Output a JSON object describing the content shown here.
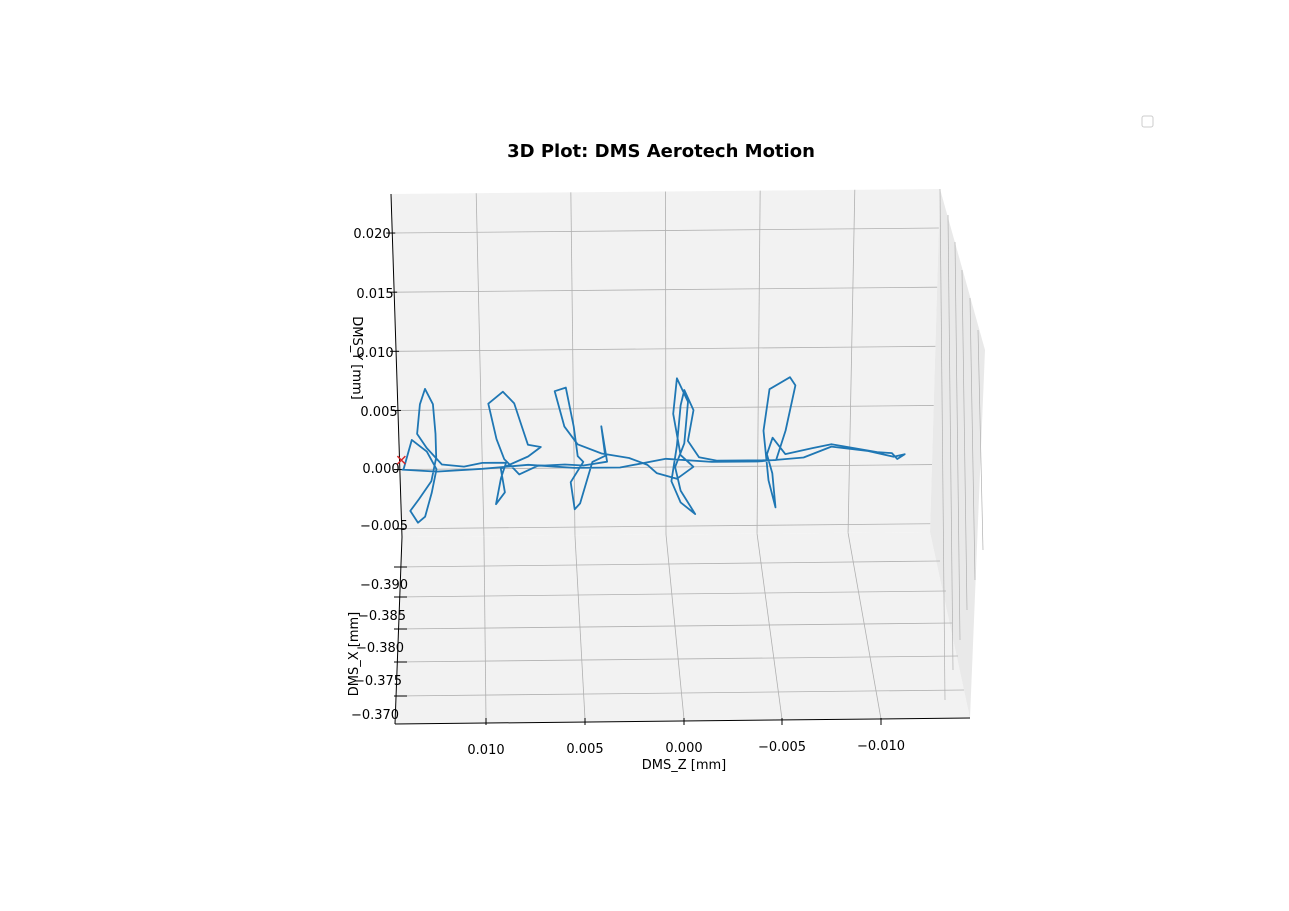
{
  "chart_data": {
    "type": "line",
    "projection": "3d",
    "title": "3D Plot: DMS Aerotech Motion",
    "xlabel": "DMS_Z [mm]",
    "ylabel": "DMS_Y [mm]",
    "zlabel": "DMS_X [mm]",
    "x_ticks": [
      "0.010",
      "0.005",
      "0.000",
      "−0.005",
      "−0.010"
    ],
    "y_ticks": [
      "0.020",
      "0.015",
      "0.010",
      "0.005",
      "0.000",
      "−0.005"
    ],
    "z_ticks": [
      "−0.390",
      "−0.385",
      "−0.380",
      "−0.375",
      "−0.370"
    ],
    "x_range": [
      0.0145,
      -0.0145
    ],
    "y_range": [
      -0.0057,
      0.0233
    ],
    "grid": true,
    "legend": {
      "visible": true,
      "entries": [],
      "placement": "top-right"
    },
    "colors": {
      "series": "#1f77b4",
      "start_marker": "#d62728",
      "pane": "#f2f2f2",
      "grid": "#b0b0b0"
    },
    "start_marker": {
      "symbol": "x",
      "z": 0.0144,
      "y": 0.0008
    },
    "series": [
      {
        "points": [
          [
            0.0144,
            0.0
          ],
          [
            0.0125,
            -0.0002
          ],
          [
            0.01,
            0.0
          ],
          [
            0.0075,
            0.0003
          ],
          [
            0.005,
            0.0
          ],
          [
            0.0025,
            0.0
          ],
          [
            0.0,
            0.0007
          ],
          [
            -0.0025,
            0.0004
          ],
          [
            -0.005,
            0.0004
          ],
          [
            -0.0075,
            0.0007
          ],
          [
            -0.009,
            0.0016
          ],
          [
            -0.011,
            0.0012
          ],
          [
            -0.0124,
            0.0007
          ],
          [
            -0.013,
            0.0009
          ],
          [
            -0.0126,
            0.0005
          ],
          [
            -0.0123,
            0.001
          ],
          [
            -0.0115,
            0.0011
          ],
          [
            -0.009,
            0.0018
          ],
          [
            -0.008,
            0.0015
          ],
          [
            -0.0065,
            0.001
          ],
          [
            -0.0058,
            0.0024
          ],
          [
            -0.0055,
            0.001
          ],
          [
            -0.0058,
            -0.0006
          ],
          [
            -0.006,
            -0.0035
          ],
          [
            -0.0056,
            -0.0012
          ],
          [
            -0.0053,
            0.003
          ],
          [
            -0.0056,
            0.0065
          ],
          [
            -0.0067,
            0.0075
          ],
          [
            -0.007,
            0.0068
          ],
          [
            -0.0065,
            0.003
          ],
          [
            -0.006,
            0.0005
          ],
          [
            -0.0045,
            0.0005
          ],
          [
            -0.0028,
            0.0005
          ],
          [
            -0.0018,
            0.0008
          ],
          [
            -0.0012,
            0.0022
          ],
          [
            -0.0015,
            0.0048
          ],
          [
            -0.001,
            0.0065
          ],
          [
            -0.0008,
            0.0052
          ],
          [
            -0.0006,
            0.0018
          ],
          [
            -0.0003,
            -0.0012
          ],
          [
            -0.0008,
            -0.003
          ],
          [
            -0.0016,
            -0.004
          ],
          [
            -0.0008,
            -0.002
          ],
          [
            -0.0005,
            0.0
          ],
          [
            -0.001,
            0.002
          ],
          [
            -0.0012,
            0.0055
          ],
          [
            -0.0006,
            0.0075
          ],
          [
            -0.0004,
            0.0045
          ],
          [
            -0.0008,
            0.001
          ],
          [
            -0.0015,
            0.0
          ],
          [
            -0.0006,
            -0.001
          ],
          [
            0.0005,
            -0.0005
          ],
          [
            0.001,
            0.0002
          ],
          [
            0.002,
            0.0008
          ],
          [
            0.0035,
            0.0012
          ],
          [
            0.0048,
            0.002
          ],
          [
            0.0055,
            0.0035
          ],
          [
            0.006,
            0.0065
          ],
          [
            0.0054,
            0.0068
          ],
          [
            0.005,
            0.0035
          ],
          [
            0.0048,
            0.001
          ],
          [
            0.0045,
            0.0005
          ],
          [
            0.0052,
            -0.0012
          ],
          [
            0.005,
            -0.0035
          ],
          [
            0.0047,
            -0.003
          ],
          [
            0.0043,
            -0.001
          ],
          [
            0.004,
            0.0005
          ],
          [
            0.0033,
            0.001
          ],
          [
            0.0035,
            0.0035
          ],
          [
            0.0032,
            0.0005
          ],
          [
            0.0045,
            0.0002
          ],
          [
            0.0055,
            0.0003
          ],
          [
            0.007,
            0.0002
          ],
          [
            0.008,
            -0.0005
          ],
          [
            0.0083,
            0.0
          ],
          [
            0.0088,
            0.0008
          ],
          [
            0.0092,
            0.0025
          ],
          [
            0.0096,
            0.0055
          ],
          [
            0.0088,
            0.0065
          ],
          [
            0.0082,
            0.0055
          ],
          [
            0.0078,
            0.0035
          ],
          [
            0.0075,
            0.002
          ],
          [
            0.0068,
            0.0018
          ],
          [
            0.0075,
            0.001
          ],
          [
            0.009,
            0.0
          ],
          [
            0.0088,
            -0.002
          ],
          [
            0.0093,
            -0.003
          ],
          [
            0.009,
            -0.0008
          ],
          [
            0.0087,
            0.0005
          ],
          [
            0.01,
            0.0005
          ],
          [
            0.011,
            0.0002
          ],
          [
            0.0122,
            0.0004
          ],
          [
            0.013,
            0.0018
          ],
          [
            0.0135,
            0.003
          ],
          [
            0.0133,
            0.0055
          ],
          [
            0.013,
            0.0068
          ],
          [
            0.0126,
            0.0055
          ],
          [
            0.0125,
            0.003
          ],
          [
            0.0125,
            0.001
          ],
          [
            0.0128,
            -0.001
          ],
          [
            0.0135,
            -0.0025
          ],
          [
            0.014,
            -0.0035
          ],
          [
            0.0136,
            -0.0045
          ],
          [
            0.0132,
            -0.004
          ],
          [
            0.0128,
            -0.002
          ],
          [
            0.0125,
            0.0
          ],
          [
            0.013,
            0.0015
          ],
          [
            0.0138,
            0.0025
          ],
          [
            0.0143,
            0.0
          ]
        ]
      }
    ]
  }
}
